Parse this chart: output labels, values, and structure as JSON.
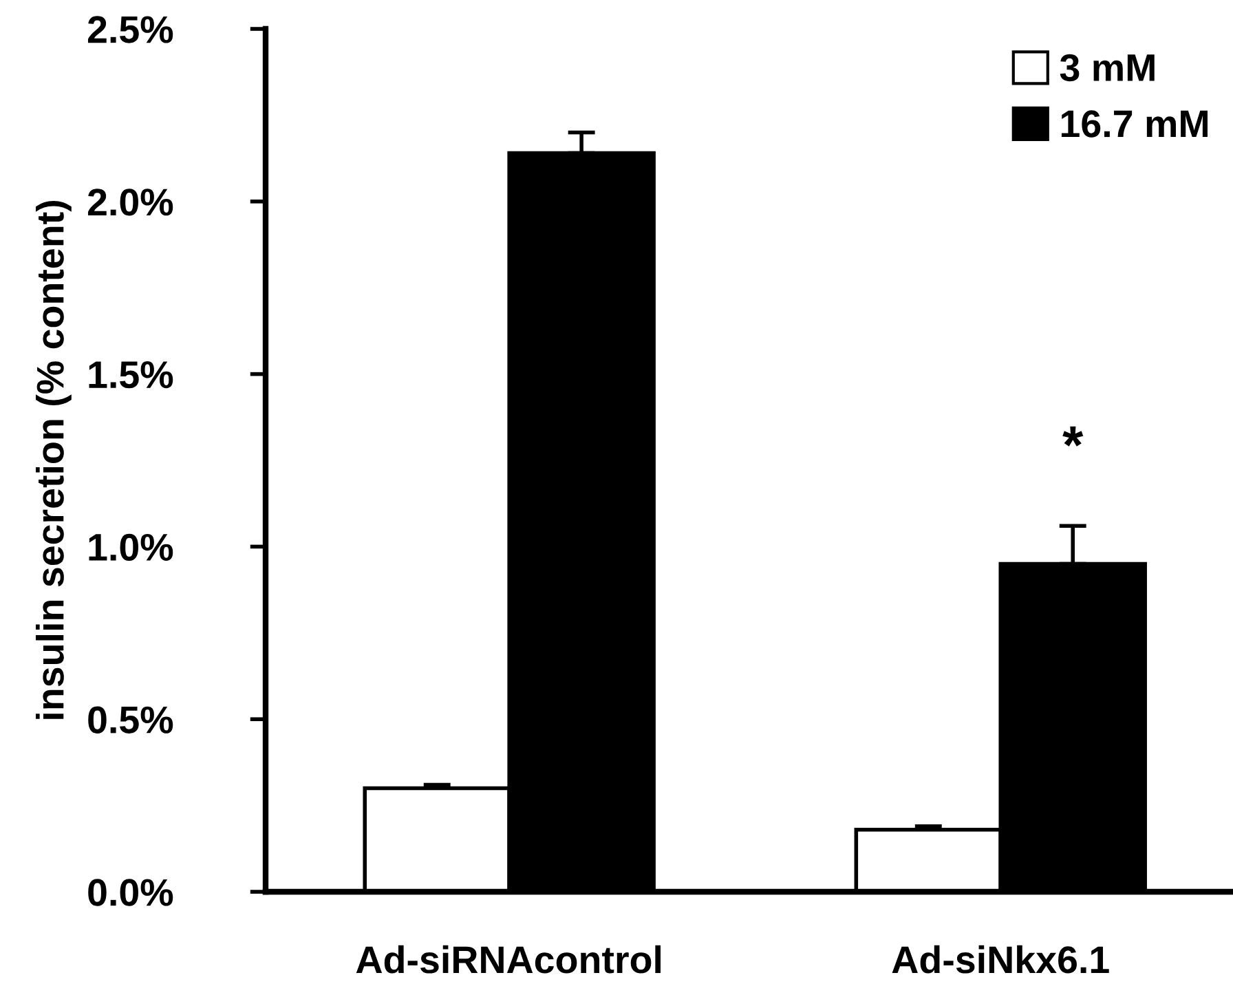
{
  "chart_data": {
    "type": "bar",
    "ylabel": "insulin secretion (% content)",
    "categories": [
      "Ad-siRNAcontrol",
      "Ad-siNkx6.1"
    ],
    "series": [
      {
        "name": "3 mM",
        "color": "#ffffff",
        "values": [
          0.3,
          0.18
        ],
        "errors": [
          0.01,
          0.01
        ]
      },
      {
        "name": "16.7 mM",
        "color": "#000000",
        "values": [
          2.14,
          0.95
        ],
        "errors": [
          0.06,
          0.11
        ]
      }
    ],
    "ylim": [
      0,
      2.5
    ],
    "yticks": [
      {
        "value": 0,
        "label": "0.0%"
      },
      {
        "value": 0.5,
        "label": "0.5%"
      },
      {
        "value": 1.0,
        "label": "1.0%"
      },
      {
        "value": 1.5,
        "label": "1.5%"
      },
      {
        "value": 2.0,
        "label": "2.0%"
      },
      {
        "value": 2.5,
        "label": "2.5%"
      }
    ],
    "annotations": [
      "*"
    ],
    "legend": "top right",
    "grid": false
  }
}
